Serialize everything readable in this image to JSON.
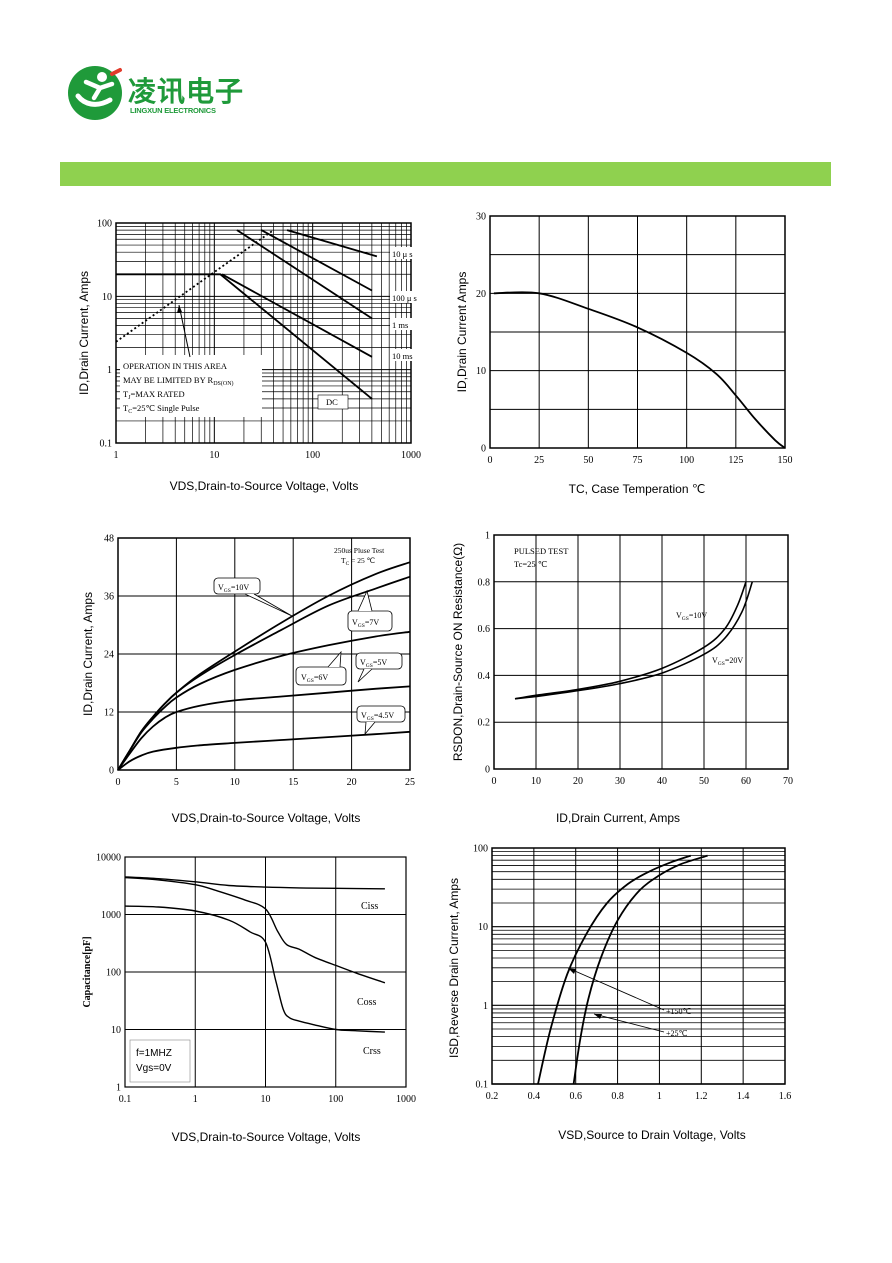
{
  "header": {
    "logo_cn": "凌讯电子",
    "logo_en": "LINGXUN ELECTRONICS",
    "logo_icon": "running-figure-logo-icon",
    "bar_color": "#8fd14f",
    "brand_color": "#1f9a3a"
  },
  "chart_data": [
    {
      "id": "soa",
      "type": "line",
      "xscale": "log",
      "yscale": "log",
      "xlim": [
        1,
        1000
      ],
      "ylim": [
        0.1,
        100
      ],
      "xticks": [
        "1",
        "10",
        "100",
        "1000"
      ],
      "yticks": [
        "0.1",
        "1",
        "10",
        "100"
      ],
      "xlabel": "VDS,Drain-to-Source Voltage, Volts",
      "ylabel": "ID,Drain Current, Amps",
      "grid": true,
      "series": [
        {
          "name": "10 μ s",
          "style": "solid",
          "x": [
            55,
            450
          ],
          "y": [
            80,
            35
          ]
        },
        {
          "name": "100 μ s",
          "style": "solid",
          "x": [
            30,
            400
          ],
          "y": [
            80,
            12
          ]
        },
        {
          "name": "1 ms",
          "style": "solid",
          "x": [
            17,
            400
          ],
          "y": [
            80,
            5
          ]
        },
        {
          "name": "10 ms",
          "style": "solid",
          "x": [
            12,
            400
          ],
          "y": [
            20,
            1.5
          ]
        },
        {
          "name": "DC",
          "style": "solid",
          "x": [
            1,
            11.5,
            400
          ],
          "y": [
            20,
            20,
            0.4
          ]
        },
        {
          "name": "RDS(ON) limit",
          "style": "dotted",
          "x": [
            1,
            40
          ],
          "y": [
            2.4,
            80
          ]
        }
      ],
      "annotations": {
        "line1": "OPERATION IN THIS AREA",
        "line2_prefix": "MAY BE LIMITED BY R",
        "line2_sub": "DS(ON)",
        "line3_prefix": "T",
        "line3_sub": "J",
        "line3_suffix": "=MAX RATED",
        "line4_prefix": "T",
        "line4_sub": "C",
        "line4_suffix": "=25℃  Single Pulse",
        "lbl_10us": "10 μ s",
        "lbl_100us": "100 μ s",
        "lbl_1ms": "1 ms",
        "lbl_10ms": "10 ms",
        "lbl_dc": "DC"
      }
    },
    {
      "id": "derating",
      "type": "line",
      "xlim": [
        0,
        150
      ],
      "ylim": [
        0,
        30
      ],
      "xticks": [
        "0",
        "25",
        "50",
        "75",
        "100",
        "125",
        "150"
      ],
      "yticks": [
        "0",
        "10",
        "20",
        "30"
      ],
      "xlabel": "TC, Case Temperation ℃",
      "ylabel": "ID,Drain Current Amps",
      "grid": true,
      "series": [
        {
          "x": [
            2,
            25,
            50,
            75,
            100,
            115,
            125,
            135,
            145,
            150
          ],
          "y": [
            20,
            20,
            18,
            15.6,
            12.3,
            9.6,
            6.8,
            3.7,
            1.0,
            0
          ]
        }
      ]
    },
    {
      "id": "output",
      "type": "line",
      "xlim": [
        0,
        25
      ],
      "ylim": [
        0,
        48
      ],
      "xticks": [
        "0",
        "5",
        "10",
        "15",
        "20",
        "25"
      ],
      "yticks": [
        "0",
        "12",
        "24",
        "36",
        "48"
      ],
      "xlabel": "VDS,Drain-to-Source Voltage, Volts",
      "ylabel": "ID,Drain Current, Amps",
      "grid": true,
      "series": [
        {
          "name": "VGS=10V",
          "x": [
            0,
            1,
            2,
            3,
            4,
            5,
            7,
            10,
            14,
            18,
            22,
            25
          ],
          "y": [
            0,
            4,
            8,
            11,
            13.7,
            16,
            19.8,
            24.5,
            30.5,
            36,
            40.5,
            43
          ]
        },
        {
          "name": "VGS=7V",
          "x": [
            0,
            1,
            2,
            3,
            4,
            5,
            7,
            10,
            14,
            18,
            22,
            25
          ],
          "y": [
            0,
            4,
            8,
            11,
            13.7,
            16,
            19.5,
            23.8,
            29,
            34,
            37.5,
            40
          ]
        },
        {
          "name": "VGS=6V",
          "x": [
            0,
            1,
            2,
            3,
            4,
            5,
            7,
            10,
            14,
            18,
            22,
            25
          ],
          "y": [
            0,
            4,
            7.8,
            10.6,
            13,
            15,
            17.8,
            20.7,
            23.6,
            25.8,
            27.6,
            28.6
          ]
        },
        {
          "name": "VGS=5V",
          "x": [
            0,
            1,
            2,
            3,
            4,
            5,
            7,
            10,
            14,
            18,
            22,
            25
          ],
          "y": [
            0,
            3.4,
            6.6,
            9,
            10.8,
            12,
            13.3,
            14.4,
            15.2,
            16,
            16.8,
            17.3
          ]
        },
        {
          "name": "VGS=4.5V",
          "x": [
            0,
            1,
            2,
            3,
            5,
            7,
            10,
            14,
            18,
            22,
            25
          ],
          "y": [
            0,
            1.8,
            3,
            3.8,
            4.6,
            5.1,
            5.6,
            6.2,
            6.8,
            7.4,
            7.9
          ]
        }
      ],
      "annotations": {
        "test_line1": "250us Pluse Test",
        "test_line2_prefix": "T",
        "test_line2_sub": "C",
        "test_line2_suffix": " = 25 ℃",
        "call_10v_prefix": "V",
        "call_10v_sub": "GS",
        "call_10v_suffix": "=10V",
        "call_7v_prefix": "V",
        "call_7v_sub": "GS",
        "call_7v_suffix": "=7V",
        "call_6v_prefix": "V",
        "call_6v_sub": "GS",
        "call_6v_suffix": "=6V",
        "call_5v_prefix": "V",
        "call_5v_sub": "GS",
        "call_5v_suffix": "=5V",
        "call_45v_prefix": "V",
        "call_45v_sub": "GS",
        "call_45v_suffix": "=4.5V"
      }
    },
    {
      "id": "rdson",
      "type": "line",
      "xlim": [
        0,
        70
      ],
      "ylim": [
        0,
        1
      ],
      "xticks": [
        "0",
        "10",
        "20",
        "30",
        "40",
        "50",
        "60",
        "70"
      ],
      "yticks": [
        "0",
        "0.2",
        "0.4",
        "0.6",
        "0.8",
        "1"
      ],
      "xlabel": "ID,Drain Current, Amps",
      "ylabel": "RSDON,Drain-Source ON Resistance(Ω)",
      "grid": true,
      "series": [
        {
          "name": "VGS=10V",
          "x": [
            5,
            10,
            20,
            30,
            40,
            50,
            55,
            58,
            60
          ],
          "y": [
            0.3,
            0.315,
            0.34,
            0.375,
            0.43,
            0.52,
            0.6,
            0.7,
            0.8
          ]
        },
        {
          "name": "VGS=20V",
          "x": [
            5,
            10,
            20,
            30,
            40,
            50,
            55,
            59,
            61.5
          ],
          "y": [
            0.3,
            0.31,
            0.335,
            0.365,
            0.41,
            0.49,
            0.56,
            0.67,
            0.8
          ]
        }
      ],
      "annotations": {
        "pulsed": "PULSED   TEST",
        "tc": "Tc=25  ℃",
        "lbl10_prefix": "V",
        "lbl10_sub": "GS",
        "lbl10_suffix": "=10V",
        "lbl20_prefix": "V",
        "lbl20_sub": "GS",
        "lbl20_suffix": "=20V"
      }
    },
    {
      "id": "capacitance",
      "type": "line",
      "xscale": "log",
      "yscale": "log",
      "xlim": [
        0.1,
        1000
      ],
      "ylim": [
        1,
        10000
      ],
      "xticks": [
        "0.1",
        "1",
        "10",
        "100",
        "1000"
      ],
      "yticks": [
        "1",
        "10",
        "100",
        "1000",
        "10000"
      ],
      "xlabel": "VDS,Drain-to-Source Voltage, Volts",
      "ylabel": "Capacitance[pF]",
      "grid": true,
      "series": [
        {
          "name": "Ciss",
          "x": [
            0.1,
            0.3,
            1,
            3,
            10,
            30,
            100,
            500
          ],
          "y": [
            4500,
            4200,
            3700,
            3200,
            3000,
            2900,
            2850,
            2800
          ]
        },
        {
          "name": "Coss",
          "x": [
            0.1,
            0.3,
            1,
            2,
            5,
            10,
            15,
            20,
            30,
            50,
            100,
            200,
            500
          ],
          "y": [
            4400,
            4000,
            3300,
            2600,
            1800,
            1250,
            500,
            300,
            250,
            180,
            130,
            95,
            65
          ]
        },
        {
          "name": "Crss",
          "x": [
            0.1,
            0.3,
            1,
            3,
            6,
            10,
            14,
            18,
            22,
            30,
            50,
            100,
            200,
            500
          ],
          "y": [
            1400,
            1350,
            1150,
            800,
            500,
            330,
            70,
            22,
            16,
            14,
            12,
            10,
            9.5,
            9
          ]
        }
      ],
      "annotations": {
        "lbl_ciss": "Ciss",
        "lbl_coss": "Coss",
        "lbl_crss": "Crss",
        "cond1": "f=1MHZ",
        "cond2": "Vgs=0V"
      }
    },
    {
      "id": "body_diode",
      "type": "line",
      "yscale": "log",
      "xlim": [
        0.2,
        1.6
      ],
      "ylim": [
        0.1,
        100
      ],
      "xticks": [
        "0.2",
        "0.4",
        "0.6",
        "0.8",
        "1",
        "1.2",
        "1.4",
        "1.6"
      ],
      "yticks": [
        "0.1",
        "1",
        "10",
        "100"
      ],
      "xlabel": "VSD,Source to Drain Voltage, Volts",
      "ylabel": "ISD,Reverse Drain Current, Amps",
      "grid": true,
      "series": [
        {
          "name": "+150℃",
          "x": [
            0.42,
            0.48,
            0.56,
            0.65,
            0.75,
            0.85,
            0.95,
            1.05,
            1.15
          ],
          "y": [
            0.1,
            0.5,
            2.5,
            8,
            20,
            35,
            50,
            65,
            80
          ]
        },
        {
          "name": "+25℃",
          "x": [
            0.59,
            0.62,
            0.66,
            0.72,
            0.8,
            0.9,
            1.0,
            1.1,
            1.23
          ],
          "y": [
            0.1,
            0.35,
            1.2,
            4,
            12,
            28,
            45,
            62,
            80
          ]
        }
      ],
      "annotations": {
        "lbl150": "+150℃",
        "lbl25": "+25℃"
      }
    }
  ]
}
